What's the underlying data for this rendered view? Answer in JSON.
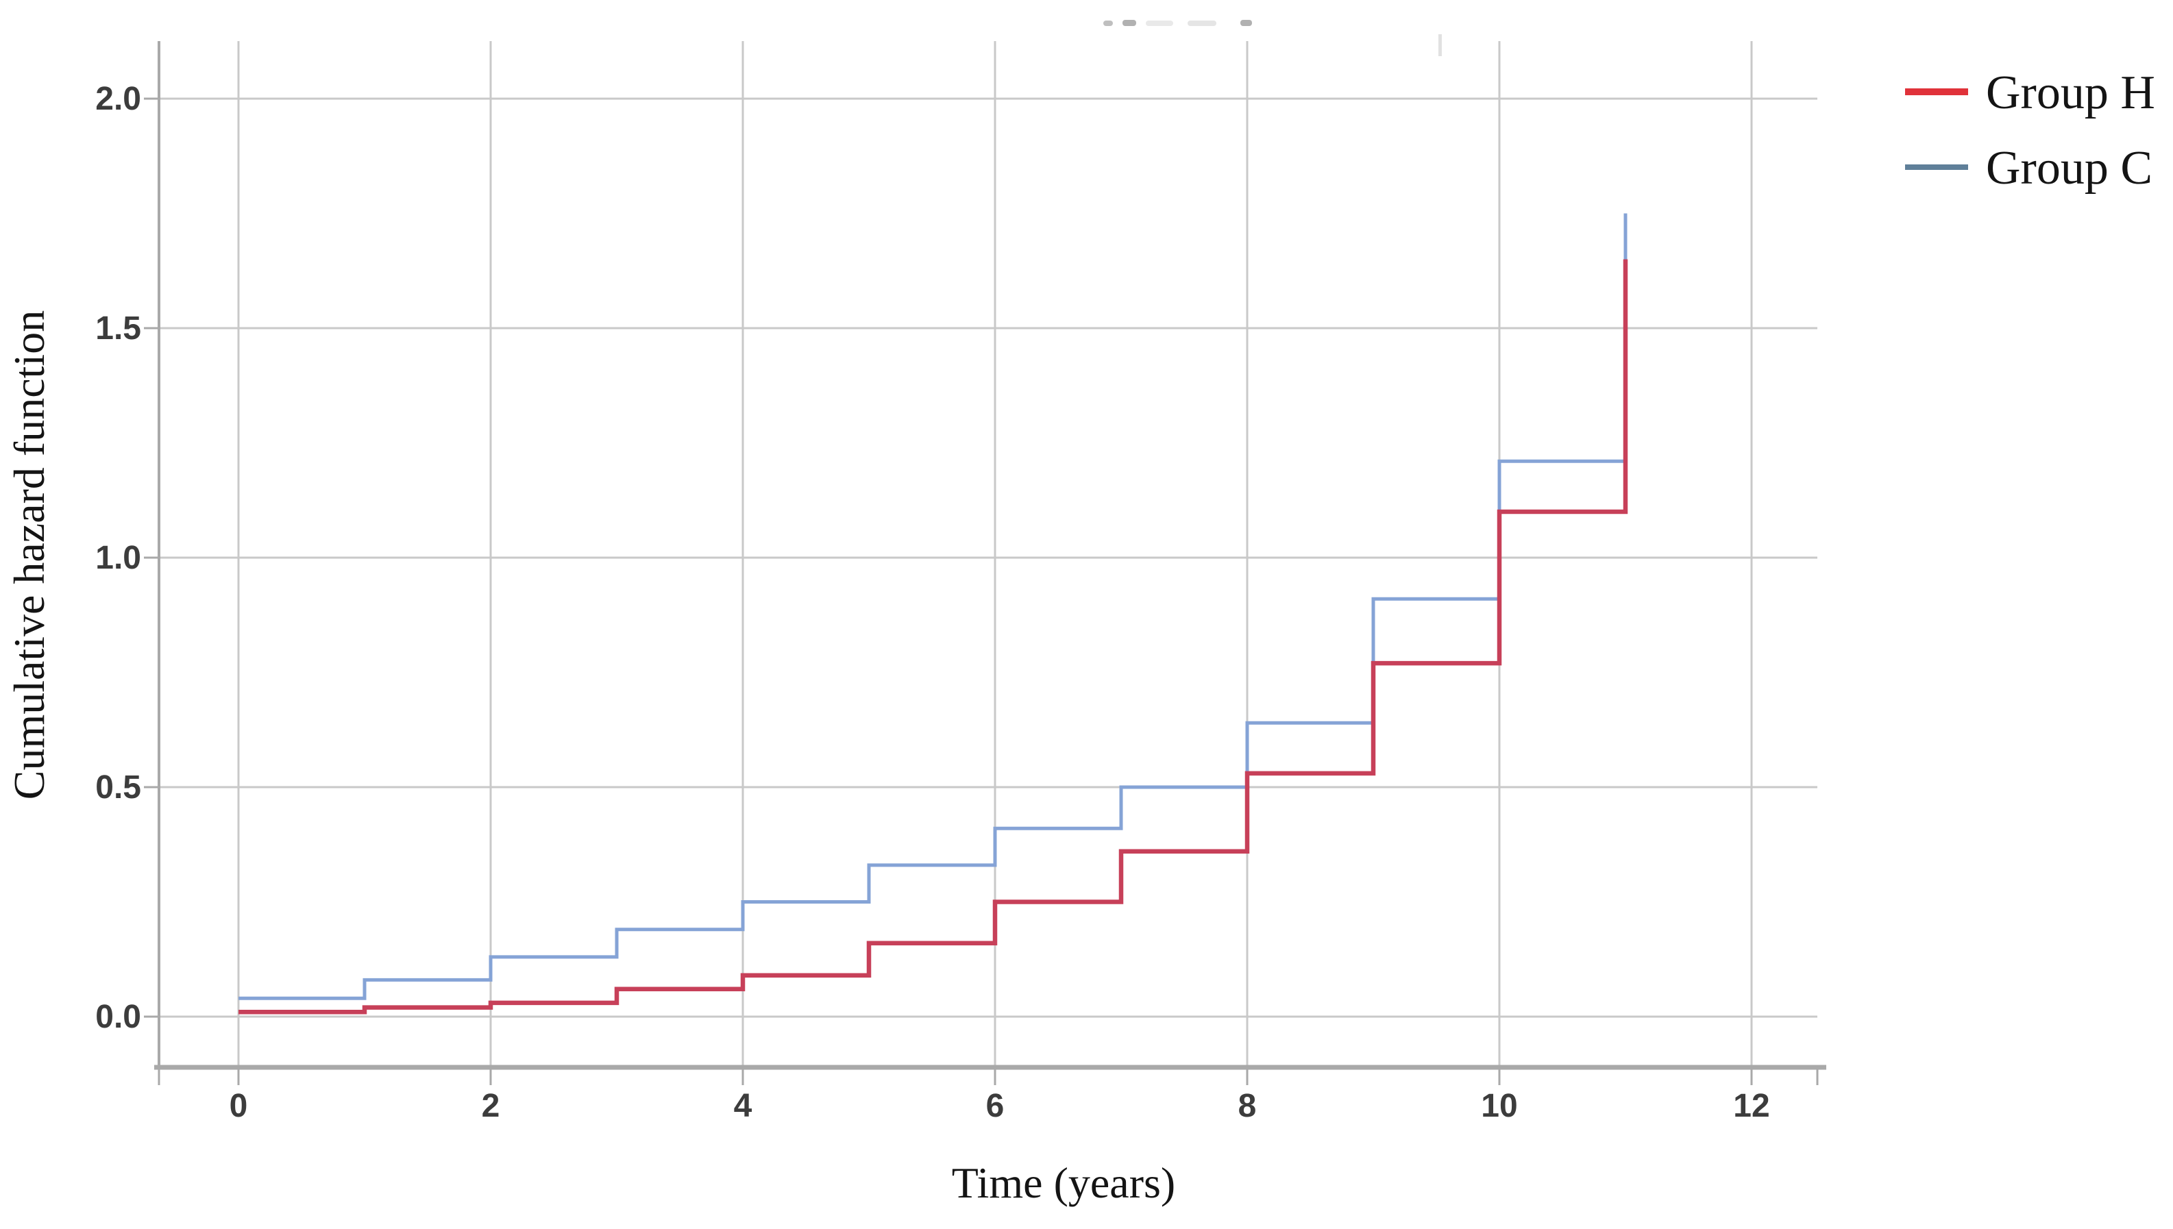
{
  "figure": {
    "background": "#ffffff"
  },
  "chart_data": {
    "type": "line",
    "line_style": "step-post",
    "title": "",
    "xlabel": "Time (years)",
    "ylabel": "Cumulative hazard function",
    "x_ticks": [
      0,
      2,
      4,
      6,
      8,
      10,
      12
    ],
    "y_tick_labels": [
      "0.0",
      "0.5",
      "1.0",
      "1.5",
      "2.0"
    ],
    "y_tick_values": [
      0,
      0.5,
      1.0,
      1.5,
      2.0
    ],
    "xlim": [
      -0.63,
      12.52
    ],
    "ylim": [
      -0.11,
      2.12
    ],
    "grid": true,
    "legend_position": "outside-top-right",
    "step_times": [
      0,
      1,
      2,
      3,
      4,
      5,
      6,
      7,
      8,
      9,
      10,
      11
    ],
    "series": [
      {
        "name": "Group H",
        "color": "#c74059",
        "legend_color": "#e0323a",
        "values": [
          0.01,
          0.02,
          0.03,
          0.06,
          0.09,
          0.16,
          0.25,
          0.36,
          0.53,
          0.77,
          1.1,
          1.65
        ]
      },
      {
        "name": "Group C",
        "color": "#85a3d6",
        "legend_color": "#5f7f99",
        "values": [
          0.04,
          0.08,
          0.13,
          0.19,
          0.25,
          0.33,
          0.41,
          0.5,
          0.64,
          0.91,
          1.21,
          1.75
        ]
      }
    ],
    "colors": {
      "grid": "#c9c9c9",
      "axis": "#a9a9a9",
      "tick_label": "#3c3c3c",
      "title_text": "#141414"
    }
  }
}
